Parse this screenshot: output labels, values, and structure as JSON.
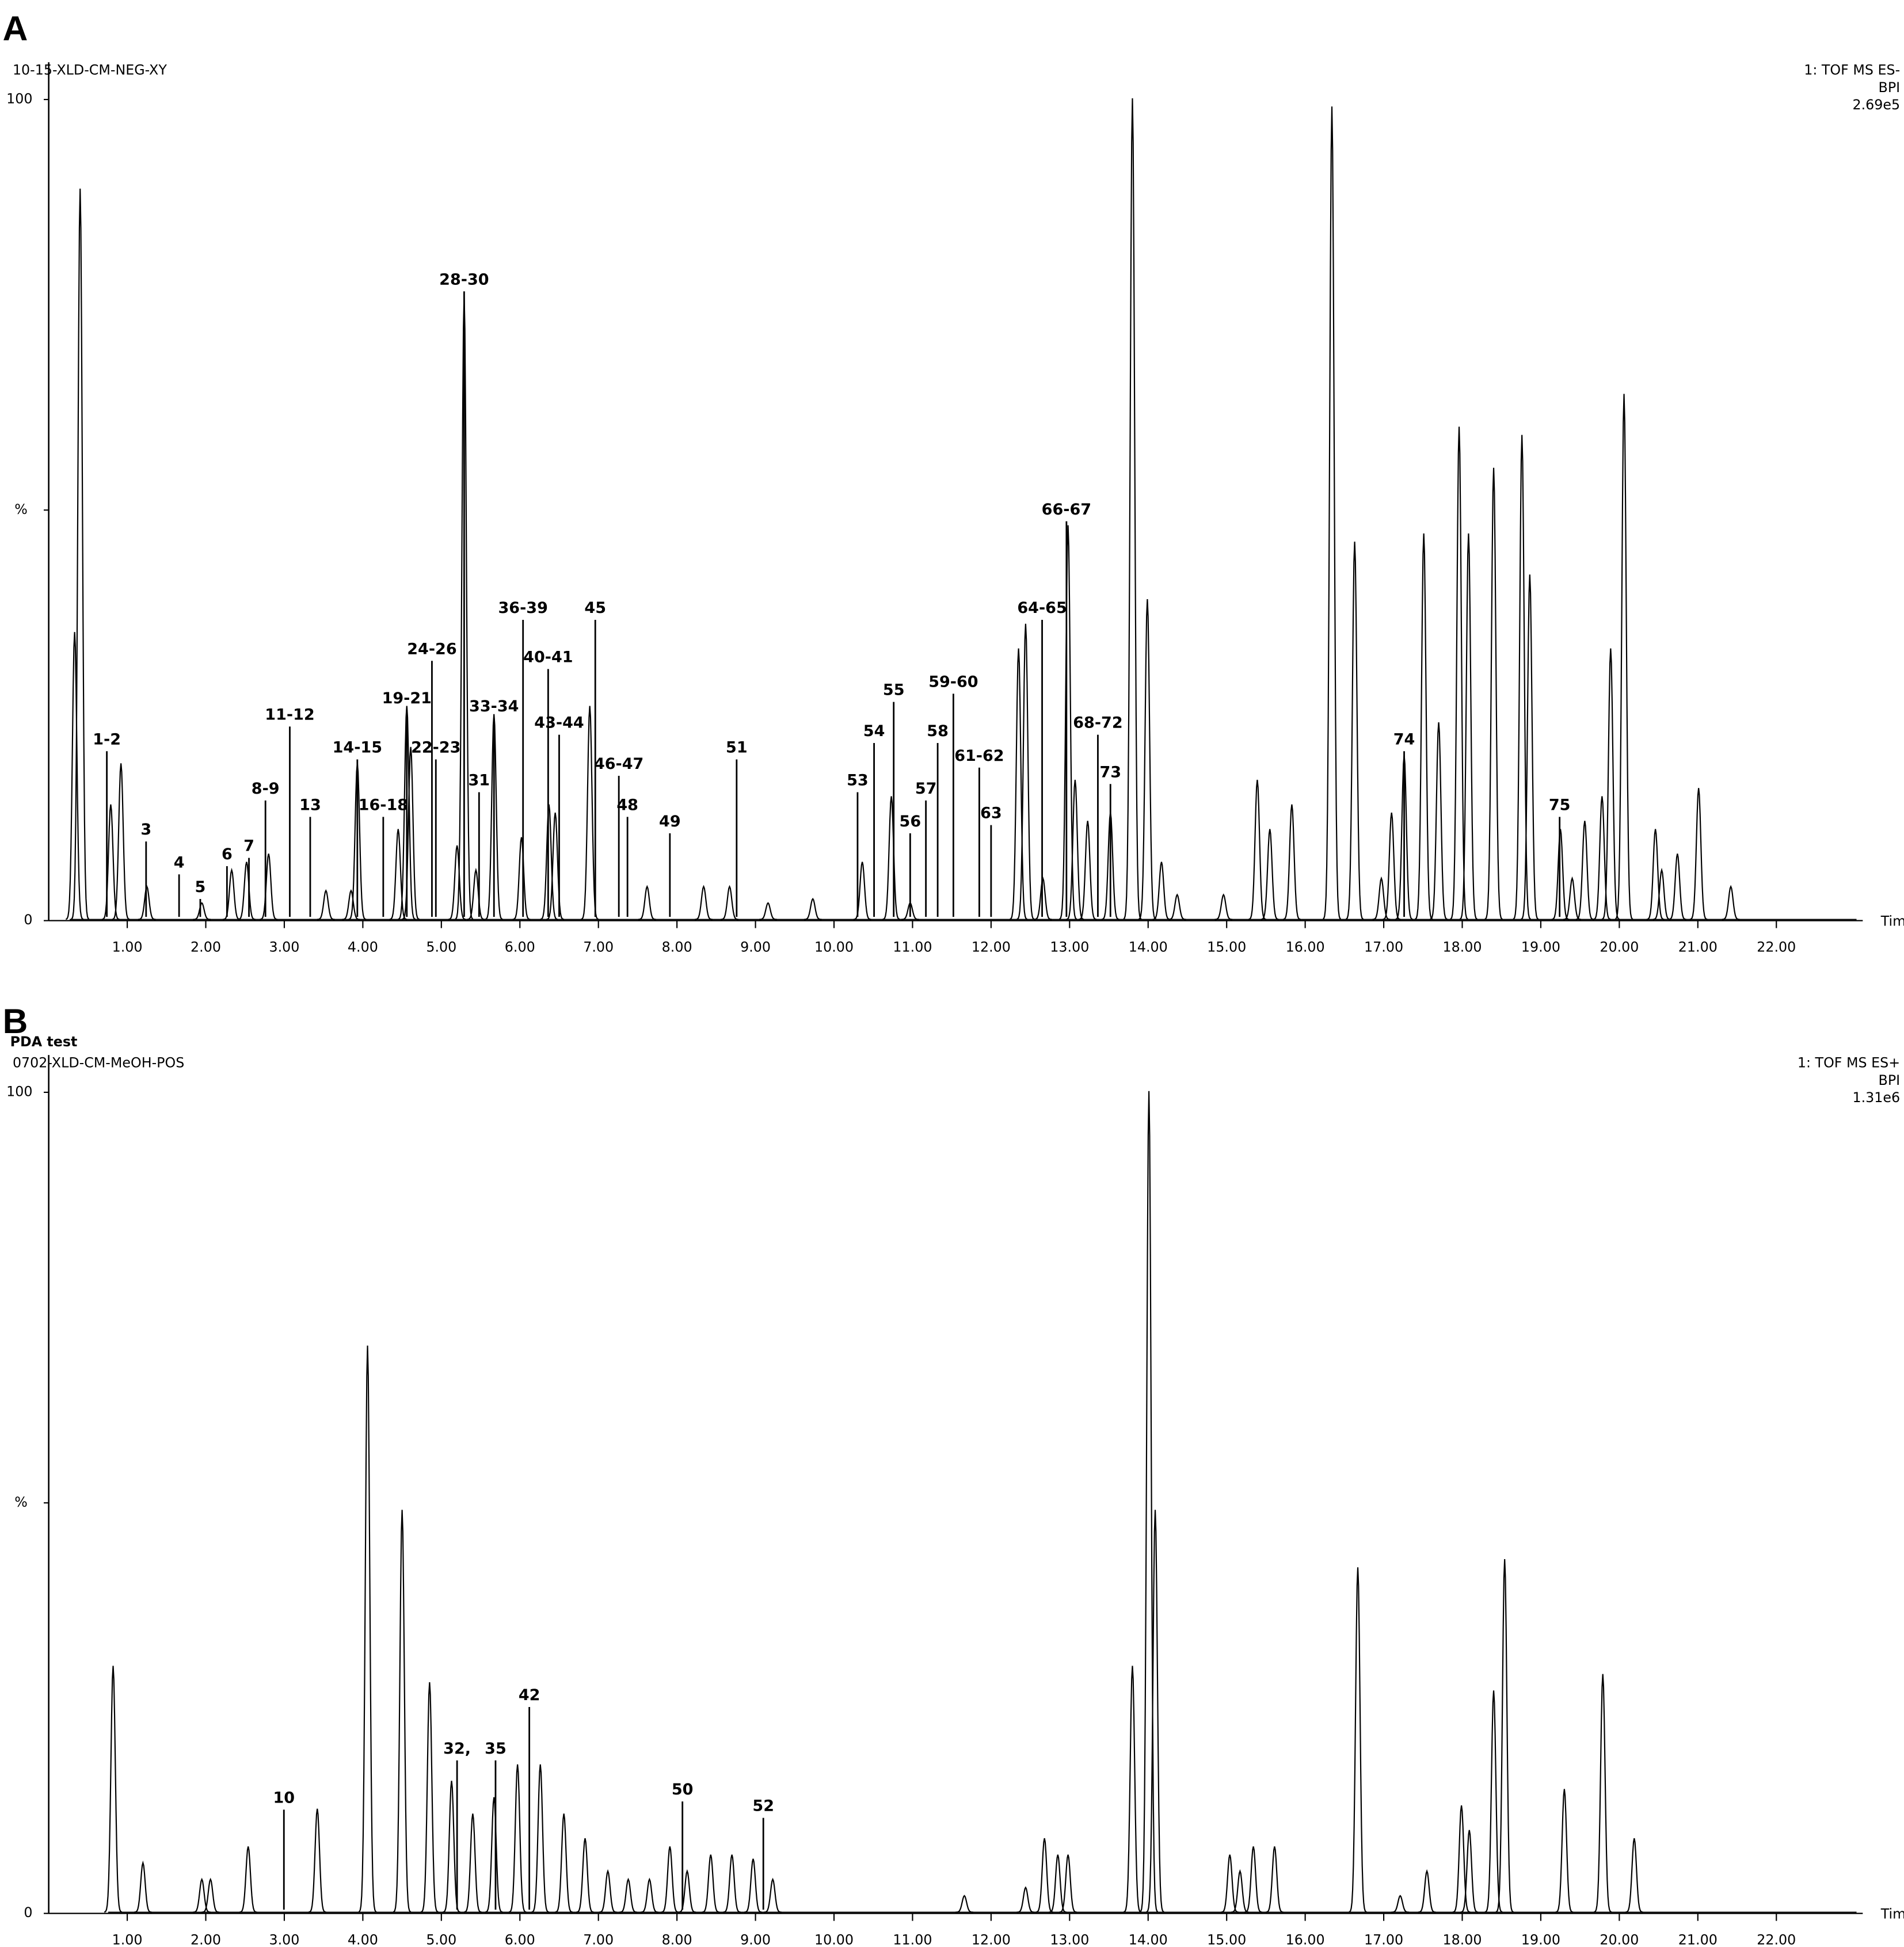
{
  "chart_data": [
    {
      "type": "chromatogram",
      "panel": "A",
      "title": "10-15-XLD-CM-NEG-XY",
      "detector": "1: TOF MS ES-",
      "trace": "BPI",
      "intensity": "2.69e5",
      "xlabel": "Time",
      "color": "#000000",
      "xlim": [
        0,
        23.1
      ],
      "ylim": [
        0,
        100
      ],
      "yticks": [
        0,
        {
          "value": 50,
          "label": "%"
        },
        100
      ],
      "xticks": [
        {
          "value": 1,
          "label": "1.00"
        },
        {
          "value": 2,
          "label": "2.00"
        },
        {
          "value": 3,
          "label": "3.00"
        },
        {
          "value": 4,
          "label": "4.00"
        },
        {
          "value": 5,
          "label": "5.00"
        },
        {
          "value": 6,
          "label": "6.00"
        },
        {
          "value": 7,
          "label": "7.00"
        },
        {
          "value": 8,
          "label": "8.00"
        },
        {
          "value": 9,
          "label": "9.00"
        },
        {
          "value": 10,
          "label": "10.00"
        },
        {
          "value": 11,
          "label": "11.00"
        },
        {
          "value": 12,
          "label": "12.00"
        },
        {
          "value": 13,
          "label": "13.00"
        },
        {
          "value": 14,
          "label": "14.00"
        },
        {
          "value": 15,
          "label": "15.00"
        },
        {
          "value": 16,
          "label": "16.00"
        },
        {
          "value": 17,
          "label": "17.00"
        },
        {
          "value": 18,
          "label": "18.00"
        },
        {
          "value": 19,
          "label": "19.00"
        },
        {
          "value": 20,
          "label": "20.00"
        },
        {
          "value": 21,
          "label": "21.00"
        },
        {
          "value": 22,
          "label": "22.00"
        }
      ],
      "x": [
        0.33,
        0.4,
        0.79,
        0.92,
        1.25,
        1.95,
        2.33,
        2.52,
        2.8,
        3.53,
        3.85,
        3.93,
        4.45,
        4.56,
        4.61,
        5.2,
        5.29,
        5.44,
        5.67,
        6.02,
        6.37,
        6.45,
        6.89,
        7.62,
        8.34,
        8.67,
        9.16,
        9.73,
        10.36,
        10.73,
        10.97,
        12.35,
        12.44,
        12.66,
        12.98,
        13.07,
        13.23,
        13.52,
        13.8,
        13.99,
        14.17,
        14.37,
        14.96,
        15.39,
        15.55,
        15.83,
        16.34,
        16.63,
        16.97,
        17.1,
        17.26,
        17.51,
        17.7,
        17.96,
        18.08,
        18.4,
        18.76,
        18.86,
        19.25,
        19.4,
        19.56,
        19.78,
        19.89,
        20.06,
        20.46,
        20.54,
        20.74,
        21.01,
        21.42
      ],
      "values": [
        35,
        89,
        14,
        19,
        4,
        2,
        6,
        7,
        8,
        3.5,
        3.5,
        19,
        11,
        26,
        21,
        9,
        76,
        6,
        25,
        10,
        14,
        13,
        26,
        4,
        4,
        4,
        2,
        2.5,
        7,
        15,
        2,
        33,
        36,
        5,
        48,
        17,
        12,
        13,
        100,
        39,
        7,
        3,
        3,
        17,
        11,
        14,
        99,
        46,
        5,
        13,
        20,
        47,
        24,
        60,
        47,
        55,
        59,
        42,
        11,
        5,
        12,
        15,
        33,
        64,
        11,
        6,
        8,
        16,
        4
      ],
      "annotations": [
        {
          "text": "1-2",
          "x": 0.74,
          "y": 22
        },
        {
          "text": "3",
          "x": 1.24,
          "y": 11
        },
        {
          "text": "4",
          "x": 1.66,
          "y": 7
        },
        {
          "text": "5",
          "x": 1.93,
          "y": 4
        },
        {
          "text": "6",
          "x": 2.27,
          "y": 8
        },
        {
          "text": "7",
          "x": 2.55,
          "y": 9
        },
        {
          "text": "8-9",
          "x": 2.76,
          "y": 16
        },
        {
          "text": "11-12",
          "x": 3.07,
          "y": 25
        },
        {
          "text": "13",
          "x": 3.33,
          "y": 14
        },
        {
          "text": "14-15",
          "x": 3.93,
          "y": 21
        },
        {
          "text": "16-18",
          "x": 4.26,
          "y": 14
        },
        {
          "text": "19-21",
          "x": 4.56,
          "y": 27
        },
        {
          "text": "22-23",
          "x": 4.93,
          "y": 21
        },
        {
          "text": "24-26",
          "x": 4.88,
          "y": 33
        },
        {
          "text": "28-30",
          "x": 5.29,
          "y": 78
        },
        {
          "text": "31",
          "x": 5.48,
          "y": 17
        },
        {
          "text": "33-34",
          "x": 5.67,
          "y": 26
        },
        {
          "text": "36-39",
          "x": 6.04,
          "y": 38
        },
        {
          "text": "40-41",
          "x": 6.36,
          "y": 32
        },
        {
          "text": "43-44",
          "x": 6.5,
          "y": 24
        },
        {
          "text": "45",
          "x": 6.96,
          "y": 38
        },
        {
          "text": "46-47",
          "x": 7.26,
          "y": 19
        },
        {
          "text": "48",
          "x": 7.37,
          "y": 14
        },
        {
          "text": "49",
          "x": 7.91,
          "y": 12
        },
        {
          "text": "51",
          "x": 8.76,
          "y": 21
        },
        {
          "text": "53",
          "x": 10.3,
          "y": 17
        },
        {
          "text": "54",
          "x": 10.51,
          "y": 23
        },
        {
          "text": "55",
          "x": 10.76,
          "y": 28
        },
        {
          "text": "56",
          "x": 10.97,
          "y": 12
        },
        {
          "text": "57",
          "x": 11.17,
          "y": 16
        },
        {
          "text": "58",
          "x": 11.32,
          "y": 23
        },
        {
          "text": "59-60",
          "x": 11.52,
          "y": 29
        },
        {
          "text": "61-62",
          "x": 11.85,
          "y": 20
        },
        {
          "text": "63",
          "x": 12.0,
          "y": 13
        },
        {
          "text": "64-65",
          "x": 12.65,
          "y": 38
        },
        {
          "text": "66-67",
          "x": 12.96,
          "y": 50
        },
        {
          "text": "68-72",
          "x": 13.36,
          "y": 24
        },
        {
          "text": "73",
          "x": 13.52,
          "y": 18
        },
        {
          "text": "74",
          "x": 17.26,
          "y": 22
        },
        {
          "text": "75",
          "x": 19.24,
          "y": 14
        }
      ]
    },
    {
      "type": "chromatogram",
      "panel": "B",
      "label": "PDA test",
      "title": "0702-XLD-CM-MeOH-POS",
      "detector": "1: TOF MS ES+",
      "trace": "BPI",
      "intensity": "1.31e6",
      "xlabel": "Time",
      "color": "#000000",
      "xlim": [
        0,
        23.1
      ],
      "ylim": [
        0,
        100
      ],
      "yticks": [
        0,
        {
          "value": 50,
          "label": "%"
        },
        100
      ],
      "xticks": [
        {
          "value": 1,
          "label": "1.00"
        },
        {
          "value": 2,
          "label": "2.00"
        },
        {
          "value": 3,
          "label": "3.00"
        },
        {
          "value": 4,
          "label": "4.00"
        },
        {
          "value": 5,
          "label": "5.00"
        },
        {
          "value": 6,
          "label": "6.00"
        },
        {
          "value": 7,
          "label": "7.00"
        },
        {
          "value": 8,
          "label": "8.00"
        },
        {
          "value": 9,
          "label": "9.00"
        },
        {
          "value": 10,
          "label": "10.00"
        },
        {
          "value": 11,
          "label": "11.00"
        },
        {
          "value": 12,
          "label": "12.00"
        },
        {
          "value": 13,
          "label": "13.00"
        },
        {
          "value": 14,
          "label": "14.00"
        },
        {
          "value": 15,
          "label": "15.00"
        },
        {
          "value": 16,
          "label": "16.00"
        },
        {
          "value": 17,
          "label": "17.00"
        },
        {
          "value": 18,
          "label": "18.00"
        },
        {
          "value": 19,
          "label": "19.00"
        },
        {
          "value": 20,
          "label": "20.00"
        },
        {
          "value": 21,
          "label": "21.00"
        },
        {
          "value": 22,
          "label": "22.00"
        }
      ],
      "x": [
        0.82,
        1.2,
        1.95,
        2.06,
        2.54,
        3.42,
        4.06,
        4.5,
        4.85,
        5.13,
        5.4,
        5.67,
        5.97,
        6.26,
        6.56,
        6.83,
        7.12,
        7.38,
        7.65,
        7.91,
        8.13,
        8.43,
        8.7,
        8.97,
        9.22,
        11.66,
        12.44,
        12.68,
        12.85,
        12.98,
        13.8,
        14.01,
        14.09,
        15.04,
        15.17,
        15.34,
        15.61,
        16.67,
        17.21,
        17.55,
        17.99,
        18.09,
        18.4,
        18.54,
        19.3,
        19.79,
        20.19
      ],
      "values": [
        30,
        6,
        4,
        4,
        8,
        12.6,
        69,
        49,
        28,
        16,
        12,
        14,
        18,
        18,
        12,
        9,
        5,
        4,
        4,
        8,
        5,
        7,
        7,
        6.5,
        4,
        2,
        3,
        9,
        7,
        7,
        30,
        100,
        49,
        7,
        5,
        8,
        8,
        42,
        2,
        5,
        13,
        10,
        27,
        43,
        15,
        29,
        9
      ],
      "annotations": [
        {
          "text": "10",
          "x": 2.995,
          "y": 14
        },
        {
          "text": "32,",
          "x": 5.2,
          "y": 20
        },
        {
          "text": "35",
          "x": 5.69,
          "y": 20
        },
        {
          "text": "42",
          "x": 6.12,
          "y": 26.5
        },
        {
          "text": "50",
          "x": 8.07,
          "y": 15
        },
        {
          "text": "52",
          "x": 9.1,
          "y": 13
        }
      ]
    }
  ]
}
